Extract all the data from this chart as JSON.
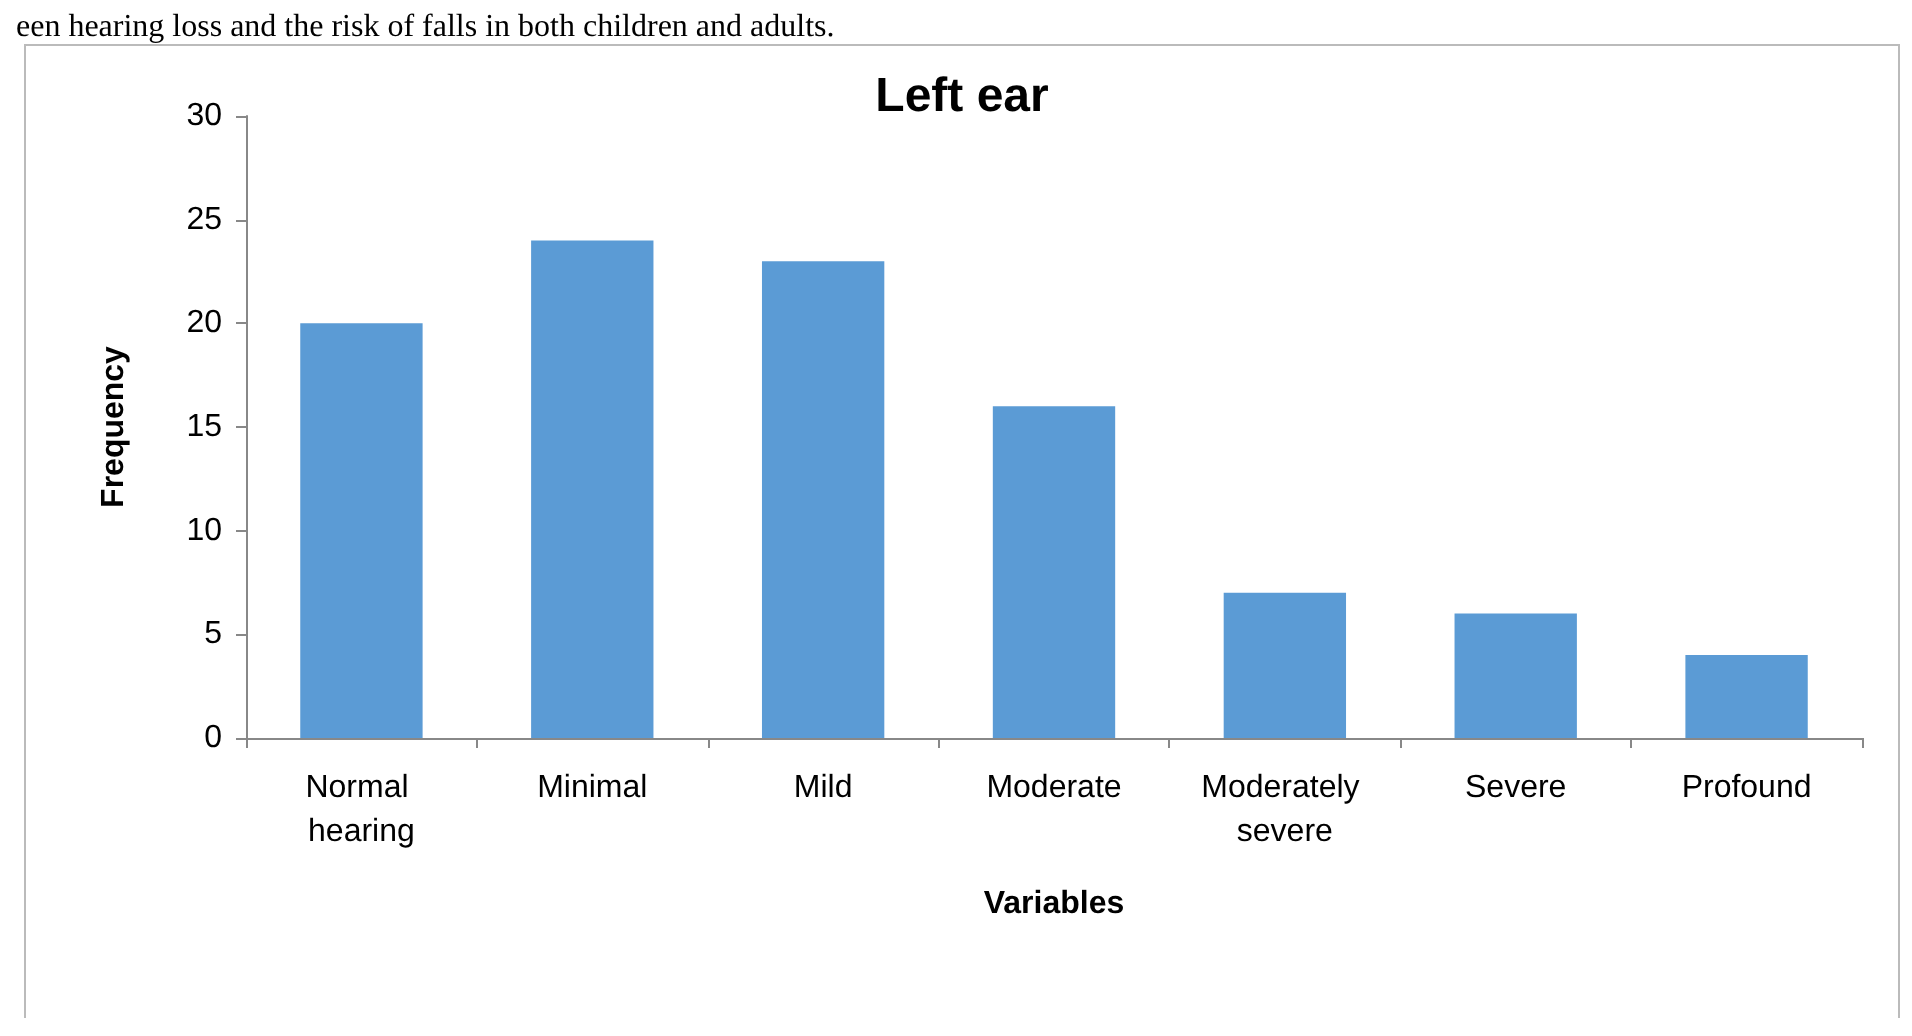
{
  "chart_data": {
    "type": "bar",
    "title": "Left ear",
    "xlabel": "Variables",
    "ylabel": "Frequency",
    "categories": [
      "Normal hearing",
      "Minimal",
      "Mild",
      "Moderate",
      "Moderately severe",
      "Severe",
      "Profound"
    ],
    "values": [
      20,
      24,
      23,
      16,
      7,
      6,
      4
    ],
    "color": "#5b9bd5",
    "ylim": [
      0,
      30
    ],
    "yticks": [
      0,
      5,
      10,
      15,
      20,
      25,
      30
    ],
    "annotations": [
      "een hearing loss and the risk of falls in both children and adults."
    ]
  }
}
